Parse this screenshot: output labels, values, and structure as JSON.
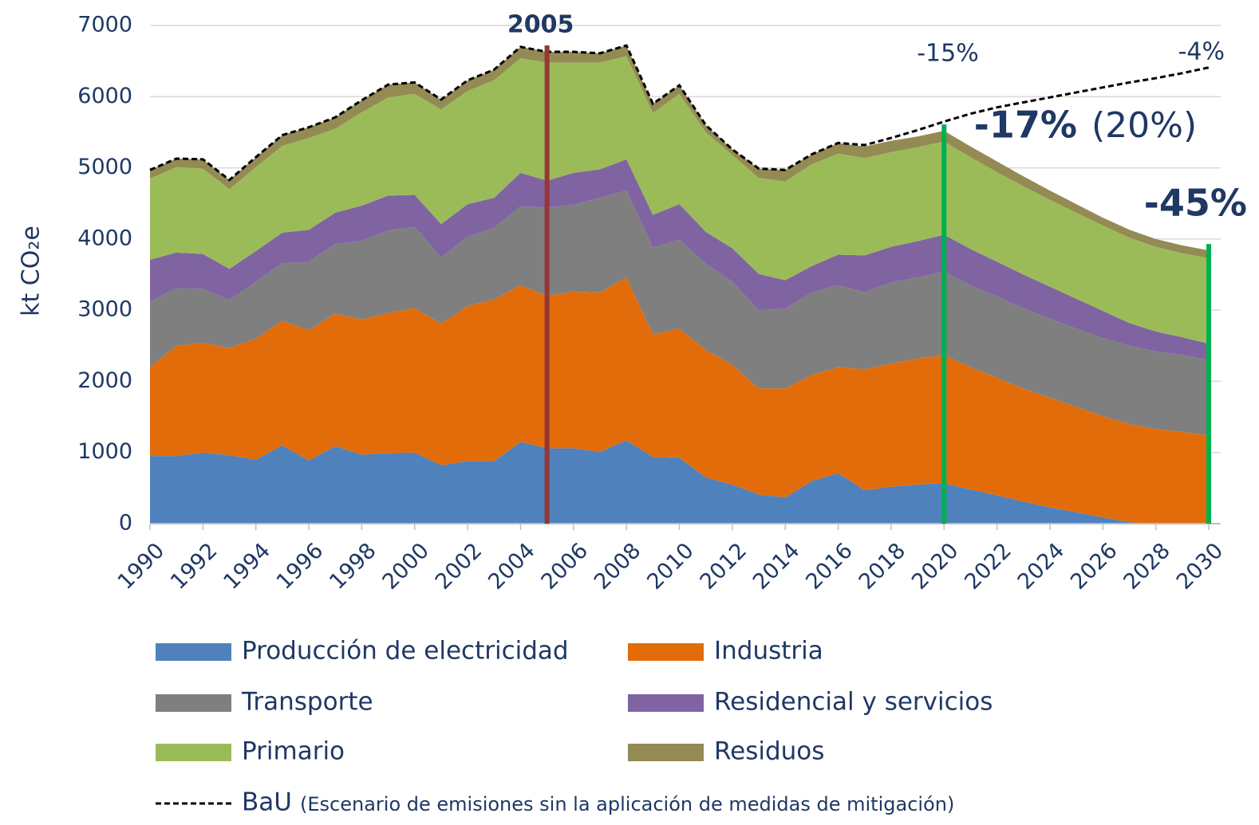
{
  "chart_data": {
    "type": "stacked-area",
    "y_label": "kt CO₂e",
    "x": [
      1990,
      1991,
      1992,
      1993,
      1994,
      1995,
      1996,
      1997,
      1998,
      1999,
      2000,
      2001,
      2002,
      2003,
      2004,
      2005,
      2006,
      2007,
      2008,
      2009,
      2010,
      2011,
      2012,
      2013,
      2014,
      2015,
      2016,
      2017,
      2018,
      2019,
      2020,
      2021,
      2022,
      2023,
      2024,
      2025,
      2026,
      2027,
      2028,
      2029,
      2030
    ],
    "xlim": [
      1990,
      2030
    ],
    "xticks": [
      1990,
      1992,
      1994,
      1996,
      1998,
      2000,
      2002,
      2004,
      2006,
      2008,
      2010,
      2012,
      2014,
      2016,
      2018,
      2020,
      2022,
      2024,
      2026,
      2028,
      2030
    ],
    "ylim": [
      0,
      7000
    ],
    "yticks": [
      0,
      1000,
      2000,
      3000,
      4000,
      5000,
      6000,
      7000
    ],
    "grid": true,
    "series": [
      {
        "name": "Producción de electricidad",
        "color": "#4f81bd",
        "values": [
          950,
          950,
          1000,
          960,
          900,
          1100,
          890,
          1090,
          970,
          990,
          1000,
          820,
          880,
          880,
          1150,
          1060,
          1060,
          1010,
          1170,
          940,
          930,
          650,
          550,
          410,
          370,
          600,
          710,
          470,
          520,
          550,
          570,
          480,
          400,
          310,
          230,
          160,
          90,
          20,
          0,
          0,
          0
        ]
      },
      {
        "name": "Industria",
        "color": "#e36c0a",
        "values": [
          1250,
          1550,
          1540,
          1510,
          1700,
          1750,
          1830,
          1860,
          1900,
          1970,
          2030,
          1990,
          2180,
          2270,
          2200,
          2140,
          2200,
          2240,
          2290,
          1720,
          1810,
          1790,
          1680,
          1490,
          1530,
          1490,
          1490,
          1700,
          1730,
          1770,
          1800,
          1720,
          1650,
          1590,
          1540,
          1480,
          1420,
          1380,
          1330,
          1290,
          1240
        ]
      },
      {
        "name": "Transporte",
        "color": "#7f7f7f",
        "values": [
          920,
          810,
          760,
          670,
          800,
          810,
          960,
          980,
          1100,
          1160,
          1140,
          930,
          970,
          1010,
          1110,
          1240,
          1220,
          1330,
          1220,
          1220,
          1250,
          1210,
          1170,
          1100,
          1120,
          1160,
          1150,
          1080,
          1140,
          1140,
          1170,
          1150,
          1140,
          1130,
          1110,
          1100,
          1100,
          1100,
          1090,
          1080,
          1060
        ]
      },
      {
        "name": "Residencial y servicios",
        "color": "#8064a2",
        "values": [
          590,
          500,
          490,
          440,
          430,
          430,
          450,
          440,
          500,
          490,
          450,
          470,
          460,
          420,
          470,
          380,
          450,
          400,
          440,
          460,
          500,
          450,
          470,
          510,
          400,
          370,
          430,
          520,
          500,
          510,
          520,
          510,
          490,
          470,
          450,
          420,
          380,
          320,
          280,
          250,
          230
        ]
      },
      {
        "name": "Primario",
        "color": "#9bbb59",
        "values": [
          1140,
          1200,
          1200,
          1120,
          1180,
          1220,
          1290,
          1180,
          1310,
          1380,
          1420,
          1610,
          1590,
          1650,
          1610,
          1660,
          1550,
          1500,
          1450,
          1430,
          1550,
          1400,
          1310,
          1350,
          1390,
          1430,
          1420,
          1370,
          1330,
          1320,
          1310,
          1290,
          1260,
          1240,
          1220,
          1210,
          1200,
          1200,
          1190,
          1180,
          1200
        ]
      },
      {
        "name": "Residuos",
        "color": "#948a54",
        "values": [
          120,
          120,
          130,
          130,
          140,
          150,
          150,
          160,
          170,
          180,
          160,
          140,
          150,
          150,
          160,
          150,
          150,
          130,
          150,
          130,
          120,
          100,
          80,
          130,
          160,
          140,
          150,
          160,
          160,
          150,
          150,
          150,
          150,
          140,
          130,
          120,
          110,
          110,
          110,
          110,
          110
        ]
      }
    ],
    "bau": {
      "name": "BaU",
      "description": "(Escenario de emisiones sin la aplicación de medidas de mitigación)",
      "color": "#000000",
      "values": [
        4970,
        5130,
        5120,
        4830,
        5150,
        5460,
        5570,
        5710,
        5950,
        6170,
        6200,
        5960,
        6230,
        6380,
        6700,
        6630,
        6630,
        6610,
        6720,
        5900,
        6160,
        5600,
        5260,
        4990,
        4970,
        5190,
        5350,
        5320,
        5420,
        5530,
        5650,
        5760,
        5850,
        5920,
        5990,
        6060,
        6130,
        6200,
        6260,
        6330,
        6410
      ]
    },
    "markers": [
      {
        "x": 2005,
        "label": "2005",
        "color": "#953735"
      },
      {
        "x": 2020,
        "color": "#00b050"
      },
      {
        "x": 2030,
        "color": "#00b050"
      }
    ],
    "annotations": [
      {
        "text": "-15%",
        "color": "#000000"
      },
      {
        "text": "-4%",
        "color": "#000000"
      },
      {
        "text": "-17%",
        "color": "#00b050"
      },
      {
        "text": "(20%)",
        "color": "#00b050"
      },
      {
        "text": "-45%",
        "color": "#00b050"
      }
    ]
  }
}
